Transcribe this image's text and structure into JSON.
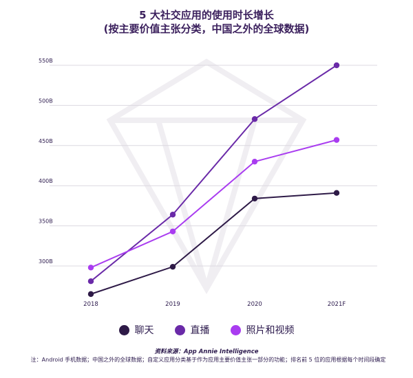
{
  "chart_data": {
    "type": "line",
    "title": [
      "5 大社交应用的使用时长增长",
      "(按主要价值主张分类，中国之外的全球数据)"
    ],
    "categories": [
      "2018",
      "2019",
      "2020",
      "2021F"
    ],
    "y_ticks": [
      "300B",
      "350B",
      "400B",
      "450B",
      "500B",
      "550B"
    ],
    "ylim": [
      255,
      555
    ],
    "grid": true,
    "legend_position": "bottom",
    "series": [
      {
        "name": "聊天",
        "color": "#2e1a47",
        "values": [
          265,
          299,
          384,
          391
        ]
      },
      {
        "name": "直播",
        "color": "#6a2aa8",
        "values": [
          281,
          364,
          483,
          550
        ]
      },
      {
        "name": "照片和视频",
        "color": "#a93cf0",
        "values": [
          298,
          343,
          430,
          457
        ]
      }
    ]
  },
  "source": "资料来源：App Annie Intelligence",
  "note": "注：Android 手机数据；中国之外的全球数据；自定义应用分类基于作为应用主要价值主张一部分的功能；排名前 5 位的应用根据每个时间段确定"
}
